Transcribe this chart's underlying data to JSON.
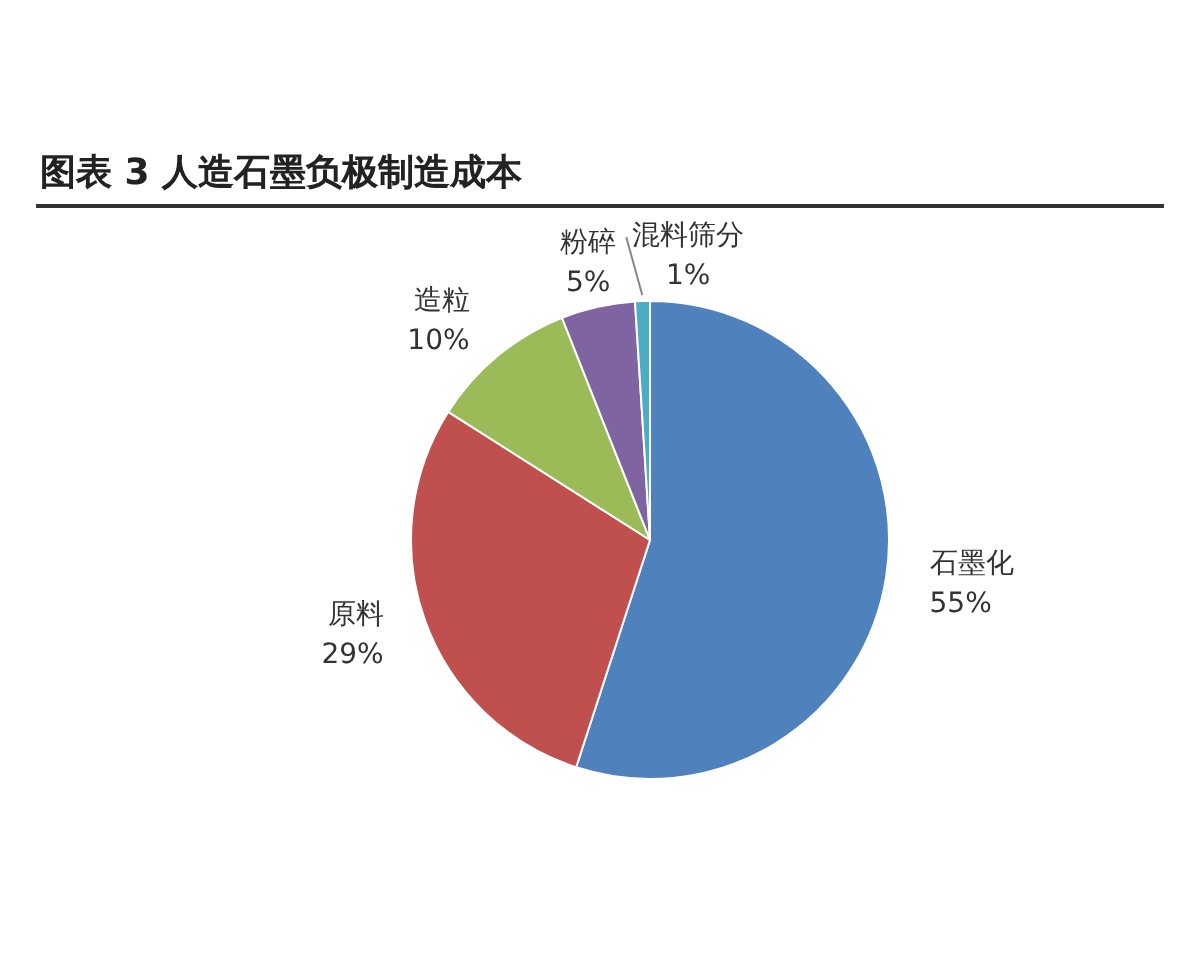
{
  "chart_data": {
    "type": "pie",
    "title": "图表 3 人造石墨负极制造成本",
    "categories": [
      "石墨化",
      "原料",
      "造粒",
      "粉碎",
      "混料筛分"
    ],
    "values": [
      55,
      29,
      10,
      5,
      1
    ],
    "colors": [
      "#4f81bd",
      "#c0504d",
      "#9bbb59",
      "#8064a2",
      "#4bacc6"
    ],
    "value_labels": [
      "55%",
      "29%",
      "10%",
      "5%",
      "1%"
    ],
    "legend": false
  }
}
